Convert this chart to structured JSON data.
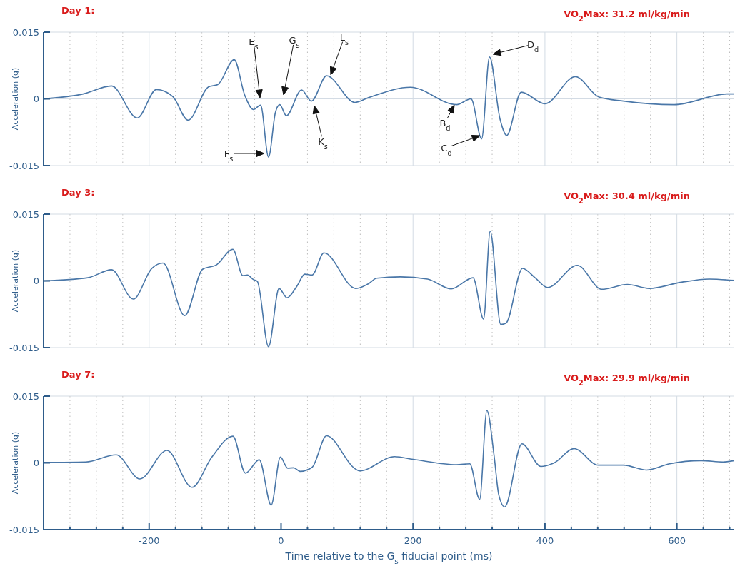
{
  "chart_data": [
    {
      "type": "line",
      "title": "Day 1:",
      "subtitle": "VO$_{2}$Max: 31.2 ml/kg/min",
      "ylabel": "Acceleration (g)",
      "xlim": [
        -360,
        687
      ],
      "ylim": [
        -0.015,
        0.015
      ],
      "yticks": [
        -0.015,
        0,
        0.015
      ],
      "xticks": [
        {
          "value": -320,
          "label": null
        },
        {
          "value": -280,
          "label": null
        },
        {
          "value": -240,
          "label": null
        },
        -200,
        {
          "value": -160,
          "label": null
        },
        {
          "value": -120,
          "label": null
        },
        {
          "value": -80,
          "label": null
        },
        {
          "value": -40,
          "label": null
        },
        0,
        {
          "value": 40,
          "label": null
        },
        {
          "value": 80,
          "label": null
        },
        {
          "value": 120,
          "label": null
        },
        {
          "value": 160,
          "label": null
        },
        200,
        {
          "value": 240,
          "label": null
        },
        {
          "value": 280,
          "label": null
        },
        {
          "value": 320,
          "label": null
        },
        {
          "value": 360,
          "label": null
        },
        400,
        {
          "value": 440,
          "label": null
        },
        {
          "value": 480,
          "label": null
        },
        {
          "value": 520,
          "label": null
        },
        {
          "value": 560,
          "label": null
        },
        600,
        {
          "value": 640,
          "label": null
        },
        {
          "value": 680,
          "label": null
        }
      ],
      "grid": true,
      "tick_labels": "y",
      "series": [
        {
          "color": "#4a77a8",
          "x": [
            -359,
            -300,
            -257,
            -218,
            -189,
            -164,
            -141,
            -110,
            -96,
            -71,
            -55,
            -42,
            -31,
            -19,
            -8.5,
            -2,
            8,
            31,
            46,
            69,
            112,
            133,
            196,
            266,
            288,
            304,
            316,
            332,
            342,
            364,
            400,
            446,
            482,
            519,
            596,
            676,
            687
          ],
          "values": [
            0,
            0.0011,
            0.0029,
            -0.0043,
            0.0021,
            0.0005,
            -0.0048,
            0.0027,
            0.0032,
            0.0088,
            0.0008,
            -0.0024,
            -0.0014,
            -0.0131,
            -0.003,
            -0.0013,
            -0.0038,
            0.002,
            -0.0005,
            0.0052,
            -0.0008,
            0.0003,
            0.0026,
            -0.0013,
            0,
            -0.009,
            0.0094,
            -0.0046,
            -0.0082,
            0.0015,
            -0.0011,
            0.005,
            0.0004,
            -0.0005,
            -0.0013,
            0.0011,
            0.0011
          ]
        }
      ],
      "annotations": [
        "E$_{s}$",
        "G$_{s}$",
        "L$_{s}$",
        "F$_{s}$",
        "K$_{s}$",
        "B$_{d}$",
        "C$_{d}$",
        "D$_{d}$"
      ]
    },
    {
      "type": "line",
      "title": "Day 3:",
      "subtitle": "VO$_{2}$Max: 30.4 ml/kg/min",
      "ylabel": "Acceleration (g)",
      "xlim": [
        -360,
        687
      ],
      "ylim": [
        -0.015,
        0.015
      ],
      "yticks": [
        -0.015,
        0,
        0.015
      ],
      "xticks": [
        {
          "value": -320,
          "label": null
        },
        {
          "value": -280,
          "label": null
        },
        {
          "value": -240,
          "label": null
        },
        -200,
        {
          "value": -160,
          "label": null
        },
        {
          "value": -120,
          "label": null
        },
        {
          "value": -80,
          "label": null
        },
        {
          "value": -40,
          "label": null
        },
        0,
        {
          "value": 40,
          "label": null
        },
        {
          "value": 80,
          "label": null
        },
        {
          "value": 120,
          "label": null
        },
        {
          "value": 160,
          "label": null
        },
        200,
        {
          "value": 240,
          "label": null
        },
        {
          "value": 280,
          "label": null
        },
        {
          "value": 320,
          "label": null
        },
        {
          "value": 360,
          "label": null
        },
        400,
        {
          "value": 440,
          "label": null
        },
        {
          "value": 480,
          "label": null
        },
        {
          "value": 520,
          "label": null
        },
        {
          "value": 560,
          "label": null
        },
        600,
        {
          "value": 640,
          "label": null
        },
        {
          "value": 680,
          "label": null
        }
      ],
      "grid": true,
      "tick_labels": "y",
      "series": [
        {
          "color": "#4a77a8",
          "x": [
            -359,
            -293,
            -257,
            -224,
            -196,
            -179,
            -146,
            -119,
            -98,
            -73,
            -58,
            -51,
            -42,
            -36,
            -19,
            -3,
            9,
            24,
            36,
            47,
            65,
            113,
            133,
            145,
            181,
            222,
            258,
            291,
            307,
            317,
            333,
            341,
            366,
            385,
            404,
            449,
            486,
            525,
            558,
            607,
            649,
            687
          ],
          "values": [
            0,
            0.0007,
            0.0025,
            -0.0041,
            0.0028,
            0.004,
            -0.0078,
            0.0026,
            0.0036,
            0.0071,
            0.0012,
            0.0013,
            0.0003,
            -0.0001,
            -0.0148,
            -0.0017,
            -0.0038,
            -0.0012,
            0.0015,
            0.0013,
            0.0063,
            -0.0017,
            -0.0006,
            0.0006,
            0.0009,
            0.0004,
            -0.0018,
            0.0007,
            -0.0086,
            0.0112,
            -0.0098,
            -0.0095,
            0.0028,
            0.0007,
            -0.0015,
            0.0035,
            -0.0019,
            -0.0008,
            -0.0017,
            -0.0003,
            0.0004,
            0.0001
          ]
        }
      ]
    },
    {
      "type": "line",
      "title": "Day 7:",
      "subtitle": "VO$_{2}$Max: 29.9 ml/kg/min",
      "ylabel": "Acceleration (g)",
      "xlabel": "Time relative to the G$_{s}$ fiducial point (ms)",
      "xlim": [
        -360,
        687
      ],
      "ylim": [
        -0.015,
        0.015
      ],
      "yticks": [
        -0.015,
        0,
        0.015
      ],
      "xticks": [
        {
          "value": -320,
          "label": null
        },
        {
          "value": -280,
          "label": null
        },
        {
          "value": -240,
          "label": null
        },
        -200,
        {
          "value": -160,
          "label": null
        },
        {
          "value": -120,
          "label": null
        },
        {
          "value": -80,
          "label": null
        },
        {
          "value": -40,
          "label": null
        },
        0,
        {
          "value": 40,
          "label": null
        },
        {
          "value": 80,
          "label": null
        },
        {
          "value": 120,
          "label": null
        },
        {
          "value": 160,
          "label": null
        },
        200,
        {
          "value": 240,
          "label": null
        },
        {
          "value": 280,
          "label": null
        },
        {
          "value": 320,
          "label": null
        },
        {
          "value": 360,
          "label": null
        },
        400,
        {
          "value": 440,
          "label": null
        },
        {
          "value": 480,
          "label": null
        },
        {
          "value": 520,
          "label": null
        },
        {
          "value": 560,
          "label": null
        },
        600,
        {
          "value": 640,
          "label": null
        },
        {
          "value": 680,
          "label": null
        }
      ],
      "grid": true,
      "series": [
        {
          "color": "#4a77a8",
          "x": [
            -359,
            -296,
            -250,
            -214,
            -173,
            -135,
            -105,
            -73,
            -54,
            -33,
            -15,
            -1,
            10,
            19,
            29,
            47,
            69,
            112,
            119,
            172,
            200,
            266,
            286,
            301,
            312,
            323,
            330,
            339,
            365,
            394,
            414,
            444,
            481,
            519,
            554,
            589,
            637,
            670,
            687
          ],
          "values": [
            0.0001,
            0.0002,
            0.0018,
            -0.0036,
            0.0028,
            -0.0055,
            0.0013,
            0.006,
            -0.0023,
            0.0007,
            -0.0095,
            0.0013,
            -0.0012,
            -0.0011,
            -0.0019,
            -0.001,
            0.0061,
            -0.0013,
            -0.0018,
            0.0014,
            0.0008,
            -0.0004,
            -0.0002,
            -0.0082,
            0.0118,
            0.0015,
            -0.0072,
            -0.0099,
            0.0043,
            -0.0008,
            0,
            0.0032,
            -0.0005,
            -0.0005,
            -0.0016,
            -0.0002,
            0.0005,
            0.0002,
            0.0005
          ]
        }
      ]
    }
  ]
}
